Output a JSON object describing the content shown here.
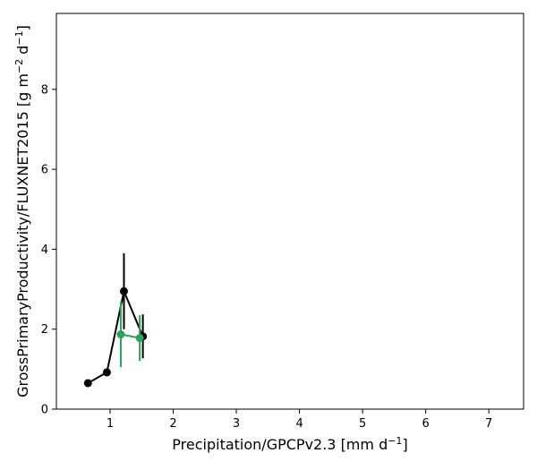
{
  "chart_data": {
    "type": "line",
    "xlabel": {
      "base": "Precipitation/GPCPv2.3 [mm d",
      "sup": "−1",
      "end": "]"
    },
    "ylabel": {
      "base": "GrossPrimaryProductivity/FLUXNET2015 [g m",
      "sup1": "−2",
      "mid": " d",
      "sup2": "−1",
      "end": "]"
    },
    "xlim": [
      0.15,
      7.55
    ],
    "ylim": [
      0,
      9.9
    ],
    "xticks": [
      "1",
      "2",
      "3",
      "4",
      "5",
      "6",
      "7"
    ],
    "yticks": [
      "0",
      "2",
      "4",
      "6",
      "8"
    ],
    "grid": false,
    "series": [
      {
        "color": "#000000",
        "points": [
          {
            "x": 0.65,
            "y": 0.65,
            "err": 0
          },
          {
            "x": 0.95,
            "y": 0.92,
            "err": 0
          },
          {
            "x": 1.22,
            "y": 2.95,
            "err": 0.95
          },
          {
            "x": 1.52,
            "y": 1.82,
            "err": 0.55
          }
        ]
      },
      {
        "color": "#2ca25f",
        "points": [
          {
            "x": 1.17,
            "y": 1.87,
            "err": 0.82
          },
          {
            "x": 1.47,
            "y": 1.78,
            "err": 0.57
          }
        ]
      }
    ]
  }
}
